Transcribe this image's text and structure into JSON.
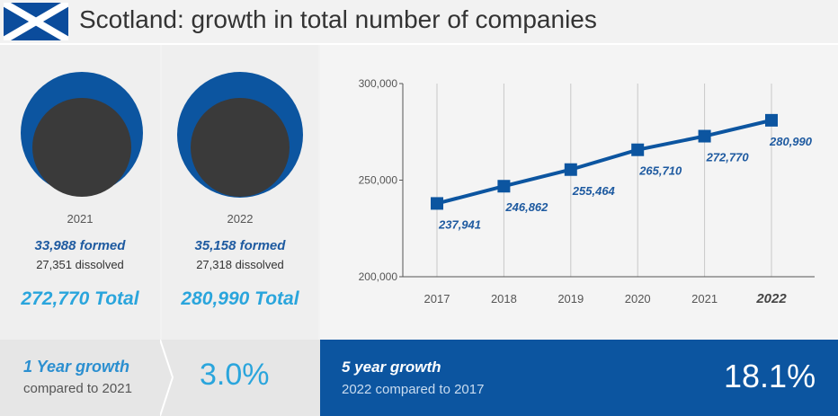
{
  "header": {
    "title": "Scotland: growth in total number of companies",
    "flag_icon": "scotland-flag-icon",
    "flag_colors": {
      "field": "#0b4c9c",
      "saltire": "#ffffff"
    }
  },
  "years": [
    {
      "year": "2021",
      "formed": "33,988 formed",
      "dissolved": "27,351 dissolved",
      "total": "272,770 Total",
      "formed_value": 33988,
      "dissolved_value": 27351
    },
    {
      "year": "2022",
      "formed": "35,158 formed",
      "dissolved": "27,318 dissolved",
      "total": "280,990 Total",
      "formed_value": 35158,
      "dissolved_value": 27318
    }
  ],
  "growth": {
    "one_year": {
      "label": "1 Year growth",
      "sub": "compared to 2021",
      "value": "3.0%"
    },
    "five_year": {
      "label": "5 year growth",
      "sub": "2022 compared to 2017",
      "value": "18.1%"
    }
  },
  "colors": {
    "accent": "#0c55a0",
    "light_accent": "#2aa5dc",
    "dark_circle": "#3a3a3a",
    "label_blue": "#1e5aa0"
  },
  "chart_data": {
    "type": "line",
    "title": "",
    "xlabel": "",
    "ylabel": "",
    "categories": [
      "2017",
      "2018",
      "2019",
      "2020",
      "2021",
      "2022"
    ],
    "values": [
      237941,
      246862,
      255464,
      265710,
      272770,
      280990
    ],
    "data_labels": [
      "237,941",
      "246,862",
      "255,464",
      "265,710",
      "272,770",
      "280,990"
    ],
    "ylim": [
      200000,
      300000
    ],
    "yticks": [
      200000,
      250000,
      300000
    ],
    "ytick_labels": [
      "200,000",
      "250,000",
      "300,000"
    ],
    "grid": "vertical",
    "legend": "none"
  }
}
